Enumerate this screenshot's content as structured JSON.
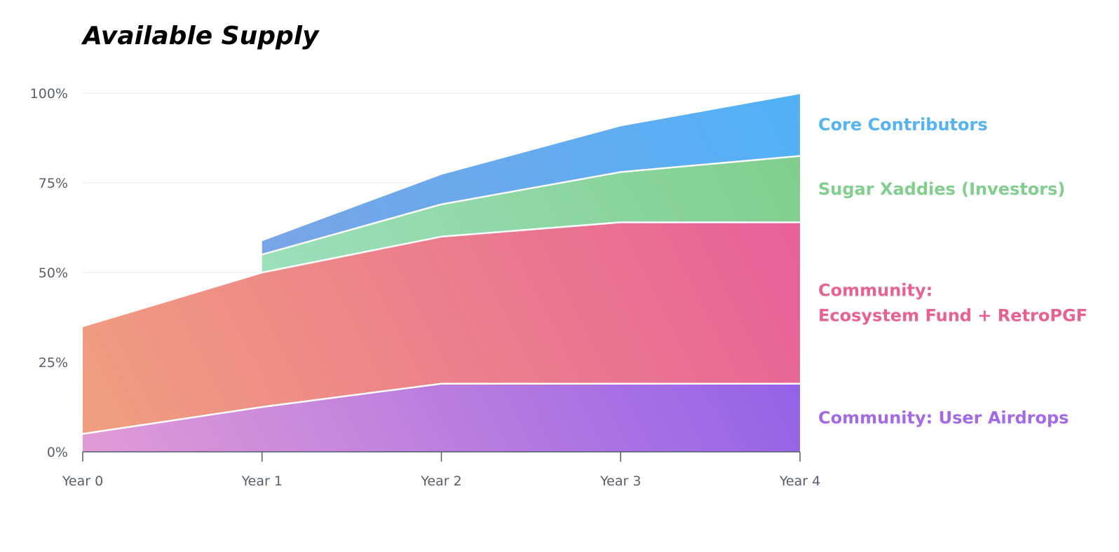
{
  "chart_data": {
    "type": "area",
    "stacked": true,
    "title": "Available Supply",
    "xlabel": "",
    "ylabel": "",
    "categories": [
      "Year 0",
      "Year 1",
      "Year 2",
      "Year 3",
      "Year 4"
    ],
    "ylim": [
      0,
      100
    ],
    "yticks": [
      0,
      25,
      50,
      75,
      100
    ],
    "ytick_labels": [
      "0%",
      "25%",
      "50%",
      "75%",
      "100%"
    ],
    "grid": true,
    "series": [
      {
        "name": "Community: User Airdrops",
        "legend_lines": [
          "Community: User Airdrops"
        ],
        "values": [
          5,
          12.5,
          19,
          19,
          19
        ],
        "color_start": "#e29bd6",
        "color_end": "#8457eb",
        "label_color": "#a46ae6"
      },
      {
        "name": "Community: Ecosystem Fund + RetroPGF",
        "legend_lines": [
          "Community:",
          "Ecosystem Fund + RetroPGF"
        ],
        "values": [
          30,
          37.5,
          41,
          45,
          45
        ],
        "color_start": "#f0a07e",
        "color_end": "#e75c9b",
        "label_color": "#e8628f"
      },
      {
        "name": "Sugar Xaddies (Investors)",
        "legend_lines": [
          "Sugar Xaddies (Investors)"
        ],
        "values": [
          null,
          5,
          9,
          14,
          18.5
        ],
        "color_start": "#a9e8cf",
        "color_end": "#7fcd8c",
        "label_color": "#82ce8e"
      },
      {
        "name": "Core Contributors",
        "legend_lines": [
          "Core Contributors"
        ],
        "values": [
          null,
          4,
          8.5,
          13,
          17.5
        ],
        "color_start": "#8a9fdf",
        "color_end": "#52b1f6",
        "label_color": "#55b3f2"
      }
    ]
  }
}
